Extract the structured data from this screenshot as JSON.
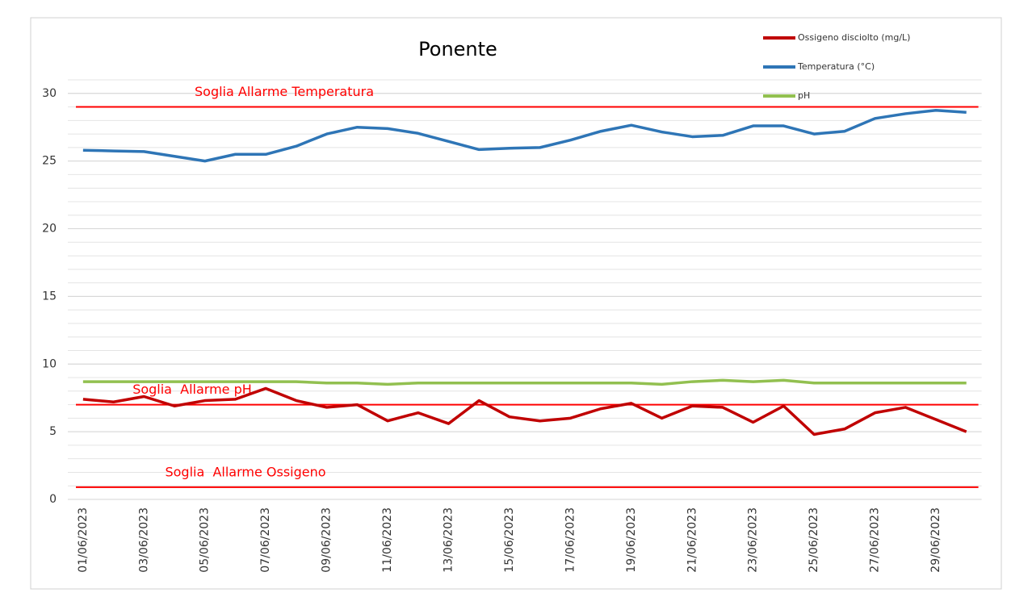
{
  "chart_data": {
    "type": "line",
    "title": "Ponente",
    "categories": [
      "01/06/2023",
      null,
      "03/06/2023",
      null,
      "05/06/2023",
      null,
      "07/06/2023",
      null,
      "09/06/2023",
      null,
      "11/06/2023",
      null,
      "13/06/2023",
      null,
      "15/06/2023",
      null,
      "17/06/2023",
      null,
      "19/06/2023",
      null,
      "21/06/2023",
      null,
      "23/06/2023",
      null,
      "25/06/2023",
      null,
      "27/06/2023",
      null,
      "29/06/2023",
      null
    ],
    "series": [
      {
        "name": "Ossigeno disciolto (mg/L)",
        "color": "#c00000",
        "values": [
          7.4,
          7.2,
          7.6,
          6.9,
          7.3,
          7.4,
          8.2,
          7.3,
          6.8,
          7.0,
          5.8,
          6.4,
          5.6,
          7.3,
          6.1,
          5.8,
          6.0,
          6.7,
          7.1,
          6.0,
          6.9,
          6.8,
          5.7,
          6.9,
          4.8,
          5.2,
          6.4,
          6.8,
          5.9,
          5.0
        ]
      },
      {
        "name": "Temperatura (°C)",
        "color": "#2e75b6",
        "values": [
          25.8,
          25.75,
          25.7,
          25.35,
          25.0,
          25.5,
          25.5,
          26.1,
          27.0,
          27.5,
          27.4,
          27.05,
          26.45,
          25.85,
          25.95,
          26.0,
          26.55,
          27.2,
          27.65,
          27.15,
          26.8,
          26.9,
          27.6,
          27.6,
          27.0,
          27.2,
          28.15,
          28.5,
          28.75,
          28.6
        ]
      },
      {
        "name": "pH",
        "color": "#92c050",
        "values": [
          8.7,
          8.7,
          8.7,
          8.7,
          8.7,
          8.7,
          8.7,
          8.7,
          8.6,
          8.6,
          8.5,
          8.6,
          8.6,
          8.6,
          8.6,
          8.6,
          8.6,
          8.6,
          8.6,
          8.5,
          8.7,
          8.8,
          8.7,
          8.8,
          8.6,
          8.6,
          8.6,
          8.6,
          8.6,
          8.6
        ]
      }
    ],
    "thresholds": [
      {
        "label": "Soglia Allarme Temperatura",
        "value": 29,
        "color": "#ff0000"
      },
      {
        "label": "Soglia  Allarme pH",
        "value": 7,
        "color": "#ff0000"
      },
      {
        "label": "Soglia  Allarme Ossigeno",
        "value": 0.9,
        "color": "#ff0000"
      }
    ],
    "ylim": [
      0,
      31
    ],
    "yticks": [
      0,
      5,
      10,
      15,
      20,
      25,
      30
    ],
    "grid": true,
    "legend": "top-right"
  }
}
